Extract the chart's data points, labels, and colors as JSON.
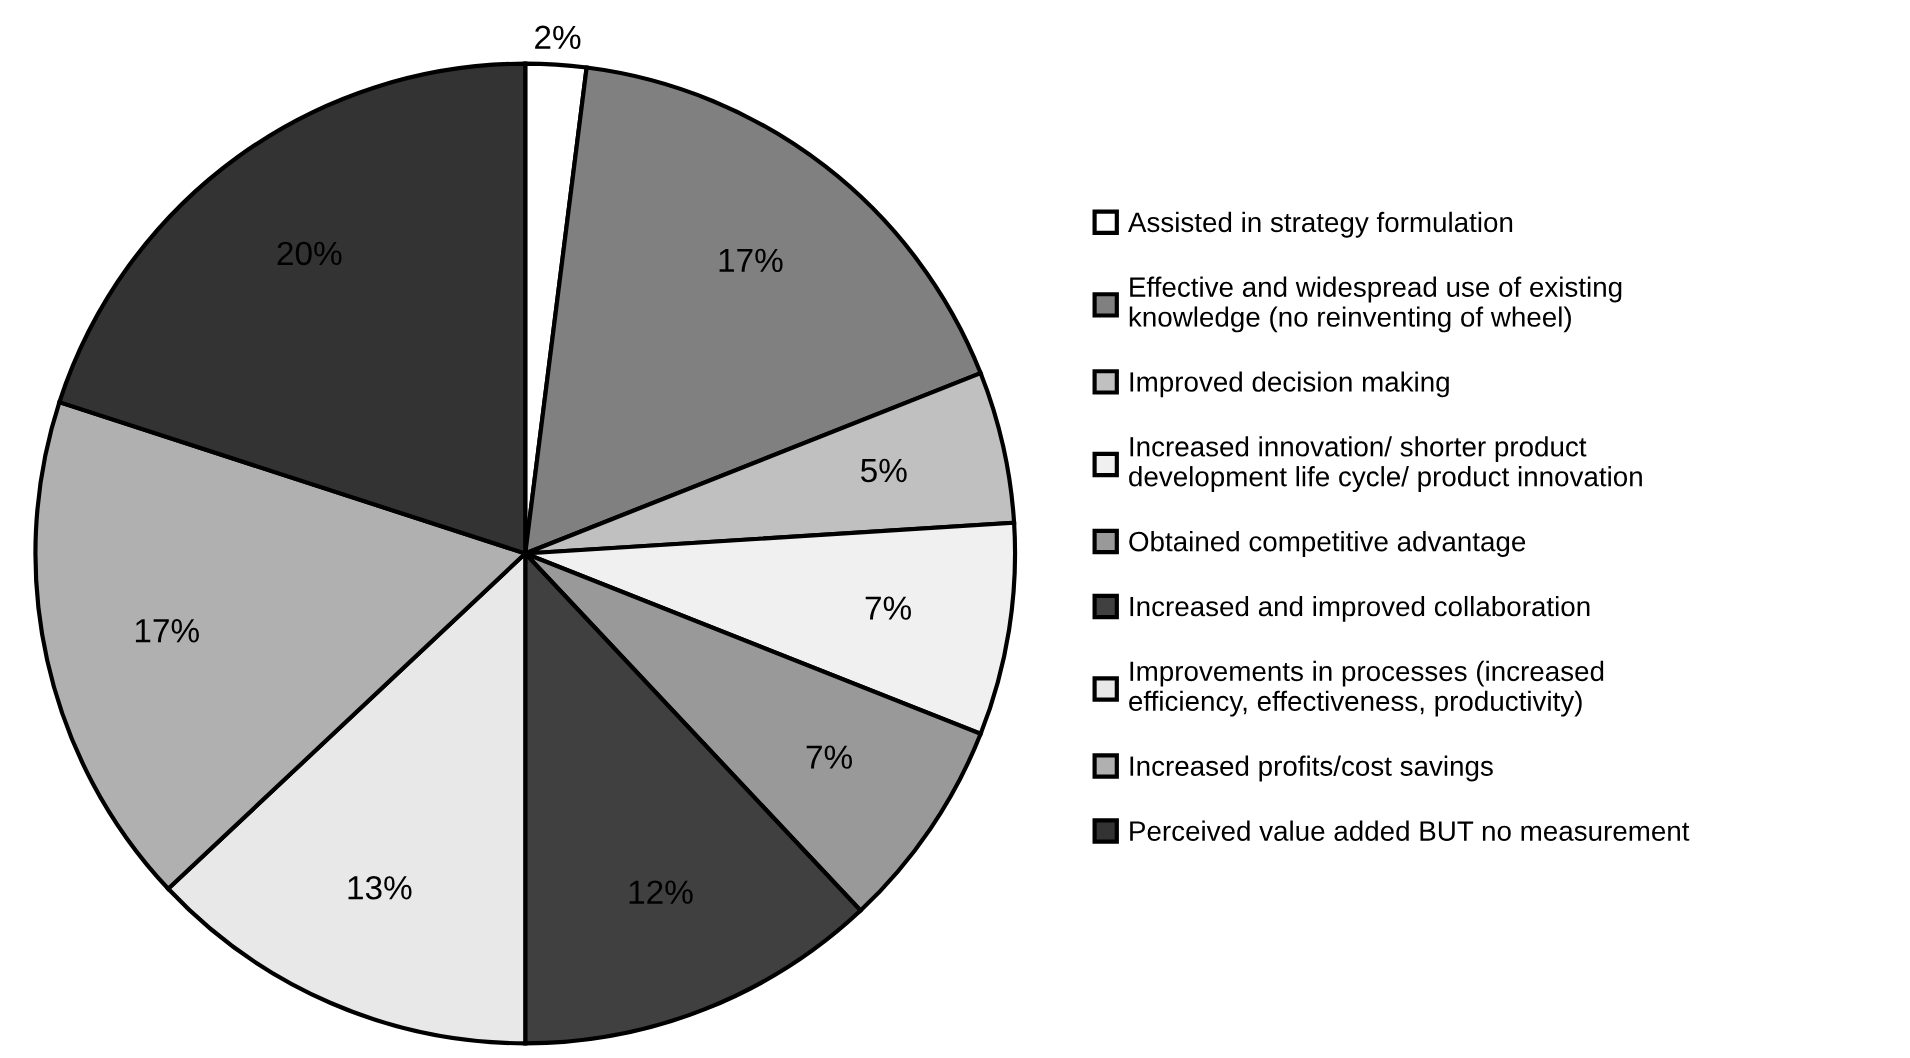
{
  "chart_data": {
    "type": "pie",
    "categories": [
      "Assisted in strategy formulation",
      "Effective and widespread use of existing\nknowledge (no reinventing of wheel)",
      "Improved decision making",
      "Increased innovation/ shorter product\ndevelopment life cycle/ product innovation",
      "Obtained competitive advantage",
      "Increased and improved collaboration",
      "Improvements in processes (increased\nefficiency, effectiveness, productivity)",
      "Increased profits/cost savings",
      "Perceived value added BUT no measurement"
    ],
    "values": [
      2,
      17,
      5,
      7,
      7,
      12,
      13,
      17,
      20
    ],
    "colors": [
      "#ffffff",
      "#808080",
      "#c0c0c0",
      "#f0f0f0",
      "#999999",
      "#404040",
      "#e8e8e8",
      "#b0b0b0",
      "#333333"
    ],
    "value_labels": [
      "2%",
      "17%",
      "5%",
      "7%",
      "7%",
      "12%",
      "13%",
      "17%",
      "20%"
    ],
    "legend": "right"
  }
}
